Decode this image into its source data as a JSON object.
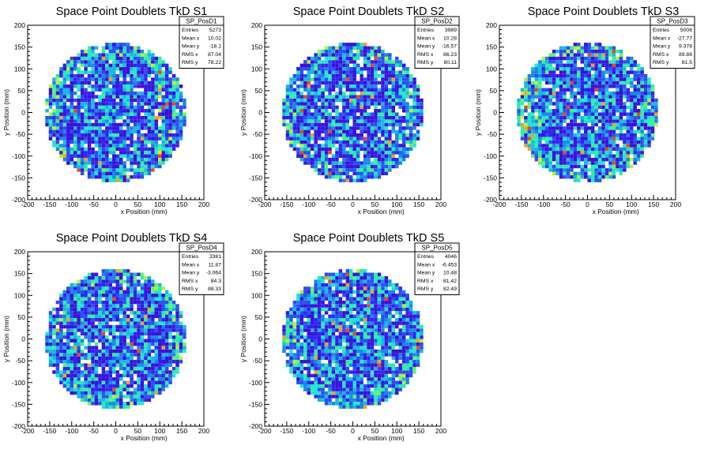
{
  "chart_data": [
    {
      "type": "heatmap",
      "title": "Space Point Doublets TkD S1",
      "xlabel": "x Position (mm)",
      "ylabel": "y Position (mm)",
      "xlim": [
        -200,
        200
      ],
      "ylim": [
        -200,
        200
      ],
      "xticks": [
        -200,
        -150,
        -100,
        -50,
        0,
        50,
        100,
        150,
        200
      ],
      "yticks": [
        -200,
        -150,
        -100,
        -50,
        0,
        50,
        100,
        150,
        200
      ],
      "disk_radius_mm": 160,
      "stats": {
        "name": "SP_PosD1",
        "rows": [
          {
            "label": "Entries",
            "value": "5273"
          },
          {
            "label": "Mean x",
            "value": "10.02"
          },
          {
            "label": "Mean y",
            "value": "-18.1"
          },
          {
            "label": "RMS x",
            "value": "87.04"
          },
          {
            "label": "RMS y",
            "value": "78.22"
          }
        ]
      }
    },
    {
      "type": "heatmap",
      "title": "Space Point Doublets TkD S2",
      "xlabel": "x Position (mm)",
      "ylabel": "y Position (mm)",
      "xlim": [
        -200,
        200
      ],
      "ylim": [
        -200,
        200
      ],
      "xticks": [
        -200,
        -150,
        -100,
        -50,
        0,
        50,
        100,
        150,
        200
      ],
      "yticks": [
        -200,
        -150,
        -100,
        -50,
        0,
        50,
        100,
        150,
        200
      ],
      "disk_radius_mm": 160,
      "stats": {
        "name": "SP_PosD2",
        "rows": [
          {
            "label": "Entries",
            "value": "3989"
          },
          {
            "label": "Mean x",
            "value": "10.28"
          },
          {
            "label": "Mean y",
            "value": "-16.57"
          },
          {
            "label": "RMS x",
            "value": "86.23"
          },
          {
            "label": "RMS y",
            "value": "80.11"
          }
        ]
      }
    },
    {
      "type": "heatmap",
      "title": "Space Point Doublets TkD S3",
      "xlabel": "x Position (mm)",
      "ylabel": "y Position (mm)",
      "xlim": [
        -200,
        200
      ],
      "ylim": [
        -200,
        200
      ],
      "xticks": [
        -200,
        -150,
        -100,
        -50,
        0,
        50,
        100,
        150,
        200
      ],
      "yticks": [
        -200,
        -150,
        -100,
        -50,
        0,
        50,
        100,
        150,
        200
      ],
      "disk_radius_mm": 160,
      "stats": {
        "name": "SP_PosD3",
        "rows": [
          {
            "label": "Entries",
            "value": "5006"
          },
          {
            "label": "Mean x",
            "value": "-27.77"
          },
          {
            "label": "Mean y",
            "value": "9.378"
          },
          {
            "label": "RMS x",
            "value": "89.88"
          },
          {
            "label": "RMS y",
            "value": "81.5"
          }
        ]
      }
    },
    {
      "type": "heatmap",
      "title": "Space Point Doublets TkD S4",
      "xlabel": "x Position (mm)",
      "ylabel": "y Position (mm)",
      "xlim": [
        -200,
        200
      ],
      "ylim": [
        -200,
        200
      ],
      "xticks": [
        -200,
        -150,
        -100,
        -50,
        0,
        50,
        100,
        150,
        200
      ],
      "yticks": [
        -200,
        -150,
        -100,
        -50,
        0,
        50,
        100,
        150,
        200
      ],
      "disk_radius_mm": 160,
      "stats": {
        "name": "SP_PosD4",
        "rows": [
          {
            "label": "Entries",
            "value": "3381"
          },
          {
            "label": "Mean x",
            "value": "11.87"
          },
          {
            "label": "Mean y",
            "value": "-3.064"
          },
          {
            "label": "RMS x",
            "value": "84.3"
          },
          {
            "label": "RMS y",
            "value": "88.33"
          }
        ]
      }
    },
    {
      "type": "heatmap",
      "title": "Space Point Doublets TkD S5",
      "xlabel": "x Position (mm)",
      "ylabel": "y Position (mm)",
      "xlim": [
        -200,
        200
      ],
      "ylim": [
        -200,
        200
      ],
      "xticks": [
        -200,
        -150,
        -100,
        -50,
        0,
        50,
        100,
        150,
        200
      ],
      "yticks": [
        -200,
        -150,
        -100,
        -50,
        0,
        50,
        100,
        150,
        200
      ],
      "disk_radius_mm": 160,
      "stats": {
        "name": "SP_PosD5",
        "rows": [
          {
            "label": "Entries",
            "value": "4046"
          },
          {
            "label": "Mean x",
            "value": "-6.453"
          },
          {
            "label": "Mean y",
            "value": "10.48"
          },
          {
            "label": "RMS x",
            "value": "81.42"
          },
          {
            "label": "RMS y",
            "value": "82.49"
          }
        ]
      }
    }
  ]
}
